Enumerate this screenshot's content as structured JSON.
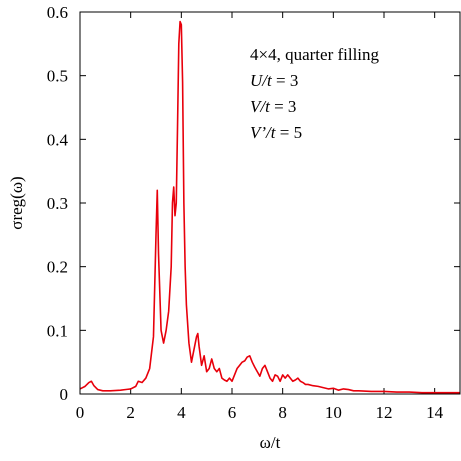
{
  "chart_data": {
    "type": "line",
    "xlabel": "ω/t",
    "ylabel": "σreg(ω)",
    "xlim": [
      0,
      15
    ],
    "ylim": [
      0,
      0.6
    ],
    "xticks": [
      "0",
      "2",
      "4",
      "6",
      "8",
      "10",
      "12",
      "14"
    ],
    "xtick_values": [
      0,
      2,
      4,
      6,
      8,
      10,
      12,
      14
    ],
    "yticks": [
      "0",
      "0.1",
      "0.2",
      "0.3",
      "0.4",
      "0.5",
      "0.6"
    ],
    "ytick_values": [
      0,
      0.1,
      0.2,
      0.3,
      0.4,
      0.5,
      0.6
    ],
    "grid": false,
    "line_color": "#e8000b",
    "annotations": {
      "line1": "4×4, quarter filling",
      "line2_var": "U/t",
      "line2_val": " = 3",
      "line3_var": "V/t",
      "line3_val": " = 3",
      "line4_var": "V’/t",
      "line4_val": " = 5"
    },
    "series": [
      {
        "x": [
          0,
          0.2,
          0.35,
          0.45,
          0.55,
          0.7,
          0.9,
          1.2,
          1.6,
          2.0,
          2.2,
          2.3,
          2.45,
          2.6,
          2.75,
          2.9,
          3.0,
          3.05,
          3.1,
          3.2,
          3.3,
          3.4,
          3.5,
          3.6,
          3.65,
          3.7,
          3.75,
          3.8,
          3.85,
          3.9,
          3.95,
          4.0,
          4.05,
          4.1,
          4.15,
          4.2,
          4.3,
          4.4,
          4.5,
          4.6,
          4.65,
          4.7,
          4.8,
          4.9,
          5.0,
          5.1,
          5.2,
          5.3,
          5.4,
          5.5,
          5.6,
          5.7,
          5.8,
          5.9,
          6.0,
          6.1,
          6.2,
          6.3,
          6.4,
          6.5,
          6.6,
          6.7,
          6.8,
          6.9,
          7.0,
          7.1,
          7.2,
          7.3,
          7.4,
          7.5,
          7.6,
          7.7,
          7.8,
          7.9,
          8.0,
          8.1,
          8.2,
          8.3,
          8.4,
          8.5,
          8.6,
          8.7,
          8.8,
          8.9,
          9.0,
          9.2,
          9.4,
          9.6,
          9.8,
          10.0,
          10.2,
          10.4,
          10.6,
          10.8,
          11.0,
          11.5,
          12.0,
          12.5,
          13.0,
          13.5,
          14.0,
          14.5,
          15.0
        ],
        "values": [
          0.008,
          0.012,
          0.018,
          0.02,
          0.013,
          0.007,
          0.005,
          0.005,
          0.006,
          0.008,
          0.012,
          0.02,
          0.018,
          0.025,
          0.04,
          0.09,
          0.25,
          0.32,
          0.22,
          0.1,
          0.08,
          0.1,
          0.13,
          0.2,
          0.3,
          0.325,
          0.28,
          0.3,
          0.42,
          0.55,
          0.585,
          0.58,
          0.49,
          0.3,
          0.2,
          0.14,
          0.08,
          0.05,
          0.07,
          0.09,
          0.095,
          0.075,
          0.045,
          0.06,
          0.035,
          0.04,
          0.055,
          0.04,
          0.035,
          0.04,
          0.025,
          0.022,
          0.02,
          0.025,
          0.02,
          0.03,
          0.04,
          0.045,
          0.05,
          0.052,
          0.058,
          0.06,
          0.05,
          0.042,
          0.035,
          0.028,
          0.04,
          0.045,
          0.035,
          0.025,
          0.02,
          0.03,
          0.028,
          0.02,
          0.03,
          0.025,
          0.03,
          0.025,
          0.02,
          0.022,
          0.025,
          0.02,
          0.018,
          0.015,
          0.015,
          0.013,
          0.012,
          0.01,
          0.008,
          0.009,
          0.006,
          0.008,
          0.007,
          0.005,
          0.005,
          0.004,
          0.004,
          0.003,
          0.003,
          0.002,
          0.002,
          0.002,
          0.002
        ]
      }
    ]
  }
}
